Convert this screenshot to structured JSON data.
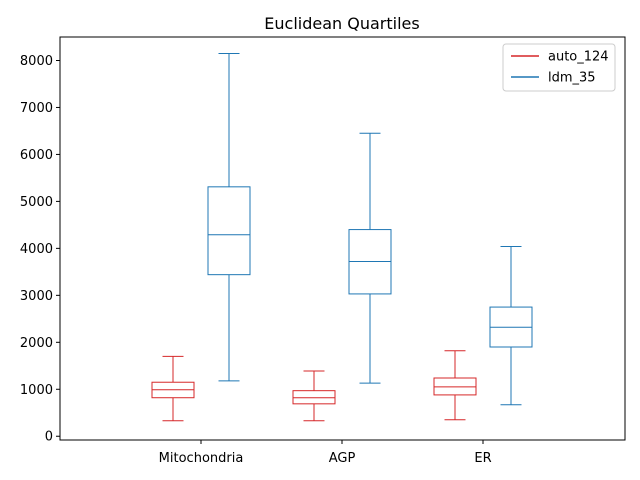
{
  "chart_data": {
    "type": "box",
    "title": "Euclidean Quartiles",
    "categories": [
      "Mitochondria",
      "AGP",
      "ER"
    ],
    "ylim": [
      -80,
      8500
    ],
    "yticks": [
      0,
      1000,
      2000,
      3000,
      4000,
      5000,
      6000,
      7000,
      8000
    ],
    "ytick_labels": [
      "0",
      "1000",
      "2000",
      "3000",
      "4000",
      "5000",
      "6000",
      "7000",
      "8000"
    ],
    "xlabel": "",
    "ylabel": "",
    "grid": false,
    "legend_position": "top-right",
    "series": [
      {
        "name": "auto_124",
        "color": "#d62728",
        "boxes": [
          {
            "whisker_low": 330,
            "q1": 820,
            "median": 990,
            "q3": 1150,
            "whisker_high": 1700
          },
          {
            "whisker_low": 330,
            "q1": 690,
            "median": 820,
            "q3": 970,
            "whisker_high": 1390
          },
          {
            "whisker_low": 350,
            "q1": 880,
            "median": 1050,
            "q3": 1240,
            "whisker_high": 1820
          }
        ]
      },
      {
        "name": "ldm_35",
        "color": "#1f77b4",
        "boxes": [
          {
            "whisker_low": 1180,
            "q1": 3440,
            "median": 4290,
            "q3": 5310,
            "whisker_high": 8150
          },
          {
            "whisker_low": 1130,
            "q1": 3030,
            "median": 3720,
            "q3": 4400,
            "whisker_high": 6450
          },
          {
            "whisker_low": 670,
            "q1": 1900,
            "median": 2320,
            "q3": 2750,
            "whisker_high": 4040
          }
        ]
      }
    ]
  }
}
